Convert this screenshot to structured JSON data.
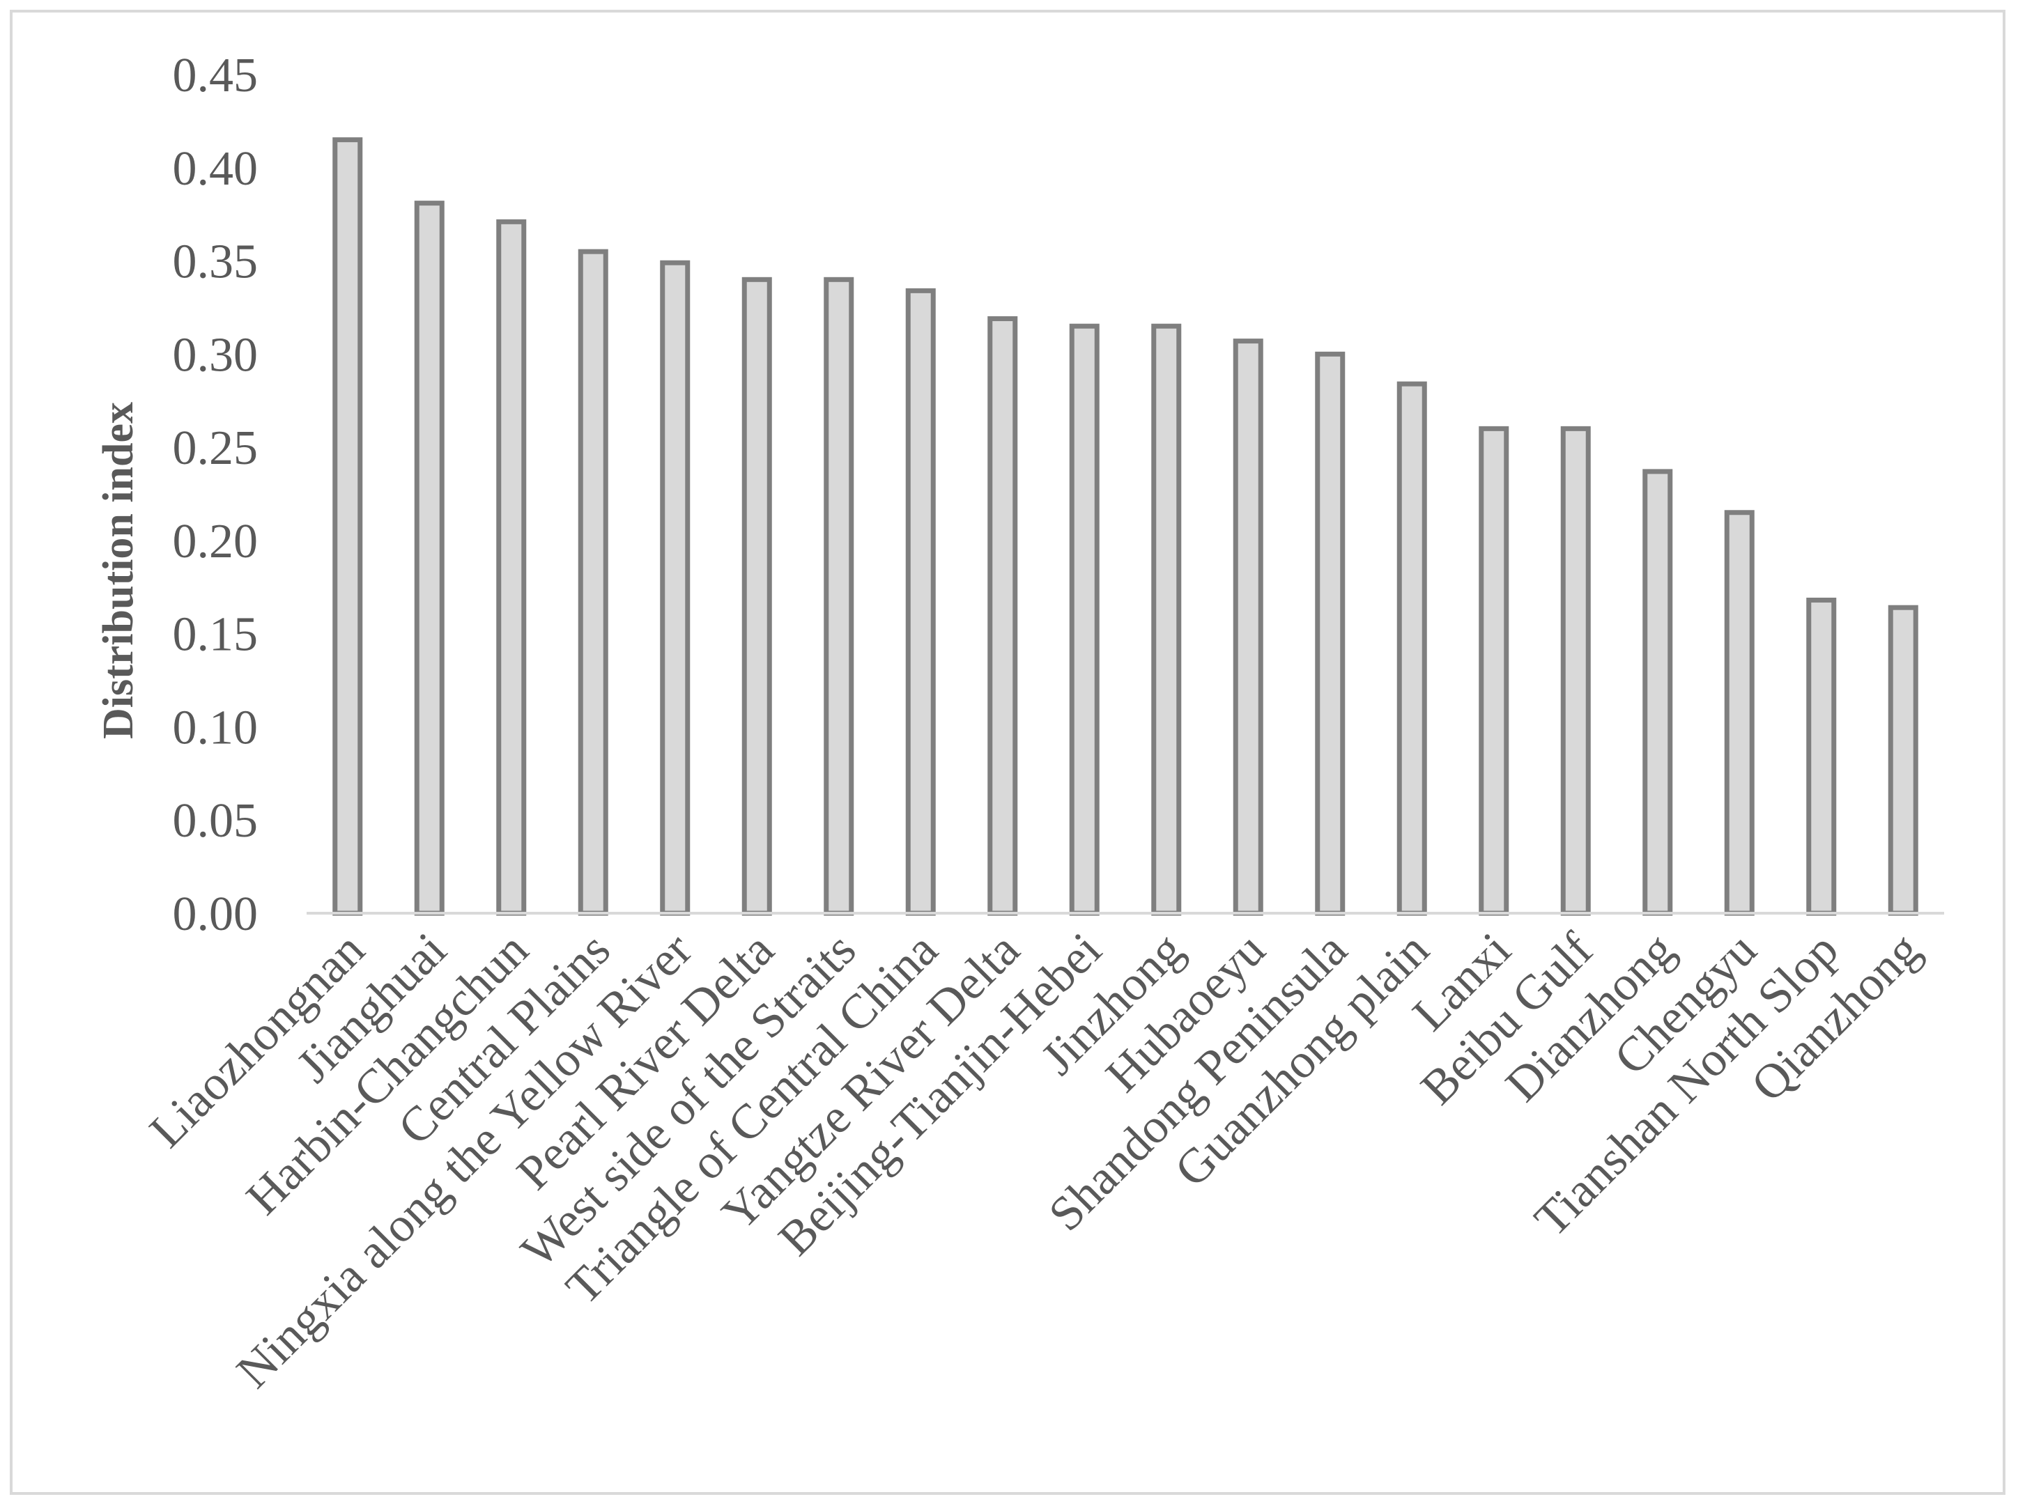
{
  "chart_data": {
    "type": "bar",
    "title": "",
    "xlabel": "",
    "ylabel": "Distribution index",
    "ylim": [
      0,
      0.45
    ],
    "ytick_step": 0.05,
    "yticks": [
      "0.00",
      "0.05",
      "0.10",
      "0.15",
      "0.20",
      "0.25",
      "0.30",
      "0.35",
      "0.40",
      "0.45"
    ],
    "grid": false,
    "legend": "none",
    "colors": {
      "bar_fill": "#d9d9d9",
      "bar_stroke": "#7f7f7f",
      "axis": "#d9d9d9",
      "text": "#595959"
    },
    "categories": [
      "Liaozhongnan",
      "Jianghuai",
      "Harbin-Changchun",
      "Central Plains",
      "Ningxia along the Yellow River",
      "Pearl River Delta",
      "West side of the Straits",
      "Triangle of Central China",
      "Yangtze River Delta",
      "Beijing-Tianjin-Hebei",
      "Jinzhong",
      "Hubaoeyu",
      "Shandong Peninsula",
      "Guanzhong plain",
      "Lanxi",
      "Beibu Gulf",
      "Dianzhong",
      "Chengyu",
      "Tianshan North Slop",
      "Qianzhong"
    ],
    "values": [
      0.415,
      0.381,
      0.371,
      0.355,
      0.349,
      0.34,
      0.34,
      0.334,
      0.319,
      0.315,
      0.315,
      0.307,
      0.3,
      0.284,
      0.26,
      0.26,
      0.237,
      0.215,
      0.168,
      0.164
    ]
  }
}
